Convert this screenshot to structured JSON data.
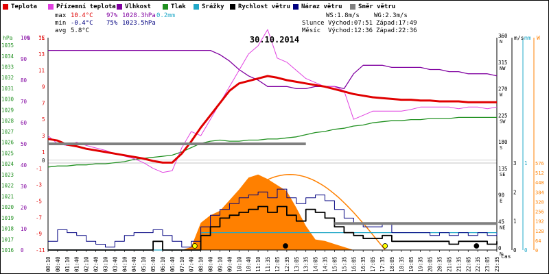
{
  "legend": [
    {
      "label": "Teplota",
      "color": "#e00000"
    },
    {
      "label": "Přízemní teplota",
      "color": "#e040e0"
    },
    {
      "label": "Vlhkost",
      "color": "#8000a0"
    },
    {
      "label": "Tlak",
      "color": "#209020"
    },
    {
      "label": "Srážky",
      "color": "#20a8c8"
    },
    {
      "label": "Rychlost větru",
      "color": "#000000"
    },
    {
      "label": "Náraz větru",
      "color": "#000080"
    },
    {
      "label": "Směr větru",
      "color": "#808080"
    }
  ],
  "stats": {
    "max_label": "max",
    "max_temp": "10.4°C",
    "max_hum": "97%",
    "max_press": "1028.3hPa",
    "max_rain": "0.2mm",
    "min_label": "min",
    "min_temp": "-0.4°C",
    "min_hum": "75%",
    "min_press": "1023.5hPa",
    "avg_label": "avg",
    "avg_temp": "5.8°C",
    "ws": "WS:1.8m/s",
    "wg": "WG:2.3m/s",
    "sun_label": "Slunce",
    "sun_rise": "Východ:07:51",
    "sun_set": "Západ:17:49",
    "moon_label": "Měsíc",
    "moon_rise": "Východ:12:36",
    "moon_set": "Západ:22:36"
  },
  "chart_data": {
    "type": "line",
    "title": "30.10.2014",
    "xlabel": "čas",
    "x": [
      "00:10",
      "00:40",
      "01:10",
      "01:40",
      "02:10",
      "02:40",
      "03:10",
      "03:40",
      "04:10",
      "04:40",
      "05:10",
      "05:40",
      "06:10",
      "06:40",
      "07:10",
      "07:40",
      "08:10",
      "08:40",
      "09:10",
      "09:40",
      "10:10",
      "10:40",
      "11:10",
      "11:35",
      "12:05",
      "12:35",
      "13:05",
      "13:35",
      "14:05",
      "14:35",
      "15:05",
      "15:35",
      "16:05",
      "16:35",
      "17:05",
      "17:35",
      "18:05",
      "18:35",
      "19:05",
      "19:35",
      "20:05",
      "20:35",
      "21:05",
      "21:35",
      "22:05",
      "22:35",
      "23:05",
      "23:35"
    ],
    "axes": {
      "pressure": {
        "label": "hPa",
        "ticks": [
          1016,
          1017,
          1018,
          1019,
          1020,
          1021,
          1022,
          1023,
          1024,
          1025,
          1026,
          1027,
          1028,
          1029,
          1030,
          1031,
          1032,
          1033,
          1034,
          1035
        ]
      },
      "humidity": {
        "label": "%",
        "ticks": [
          0,
          10,
          20,
          30,
          40,
          50,
          60,
          70,
          80,
          90,
          100
        ]
      },
      "temperature": {
        "label": "°C",
        "ticks": [
          -11,
          -9,
          -7,
          -5,
          -3,
          -1,
          1,
          3,
          5,
          7,
          9,
          11,
          13,
          15
        ],
        "extra_tick": 0
      },
      "wind_dir": {
        "label": "°",
        "ticks": [
          0,
          45,
          90,
          135,
          180,
          225,
          270,
          315,
          360
        ],
        "letters": [
          "N",
          "NE",
          "E",
          "SE",
          "S",
          "SW",
          "W",
          "NW",
          "N"
        ]
      },
      "wind_speed": {
        "label": "m/s",
        "ticks": [
          0,
          1,
          2,
          3
        ]
      },
      "rain": {
        "label": "mm",
        "ticks": [
          0,
          1
        ]
      },
      "radiation": {
        "label": "W",
        "ticks": [
          0,
          64,
          128,
          192,
          256,
          320,
          384,
          448,
          512,
          576
        ]
      }
    },
    "series": [
      {
        "name": "Teplota",
        "axis": "temperature",
        "color": "#e00000",
        "values": [
          2.6,
          2.4,
          1.9,
          1.7,
          1.4,
          1.2,
          1.0,
          0.8,
          0.6,
          0.4,
          0.2,
          -0.1,
          -0.3,
          -0.3,
          0.8,
          2.3,
          4.0,
          5.5,
          7.0,
          8.5,
          9.4,
          9.7,
          10.0,
          10.3,
          10.1,
          9.8,
          9.6,
          9.4,
          9.2,
          9.0,
          8.7,
          8.4,
          8.1,
          7.9,
          7.7,
          7.6,
          7.5,
          7.4,
          7.4,
          7.3,
          7.3,
          7.2,
          7.2,
          7.2,
          7.1,
          7.1,
          7.1,
          7.1
        ]
      },
      {
        "name": "Přízemní teplota",
        "axis": "temperature",
        "color": "#e040e0",
        "values": [
          3.0,
          2.0,
          1.8,
          2.2,
          1.8,
          1.5,
          1.2,
          0.8,
          0.5,
          0.2,
          -0.3,
          -1.0,
          -1.5,
          -1.3,
          1.5,
          3.5,
          3.0,
          5.0,
          7.0,
          9.0,
          11.0,
          13.0,
          14.0,
          16.0,
          12.5,
          12.0,
          11.0,
          10.0,
          9.5,
          9.0,
          9.0,
          8.5,
          5.0,
          5.5,
          6.0,
          6.0,
          6.0,
          6.0,
          6.2,
          6.5,
          6.5,
          6.5,
          6.5,
          6.3,
          6.5,
          6.5,
          6.3,
          6.5
        ]
      },
      {
        "name": "Vlhkost",
        "axis": "humidity",
        "color": "#8000a0",
        "values": [
          94,
          94,
          94,
          94,
          94,
          94,
          94,
          94,
          94,
          94,
          94,
          94,
          94,
          94,
          94,
          94,
          94,
          94,
          92,
          89,
          85,
          82,
          80,
          77,
          77,
          77,
          76,
          76,
          77,
          77,
          77,
          76,
          83,
          87,
          87,
          87,
          86,
          86,
          86,
          86,
          85,
          85,
          84,
          84,
          83,
          83,
          83,
          82
        ]
      },
      {
        "name": "Tlak",
        "axis": "pressure",
        "color": "#209020",
        "values": [
          1023.7,
          1023.8,
          1023.8,
          1023.9,
          1023.9,
          1024.0,
          1024.0,
          1024.1,
          1024.2,
          1024.4,
          1024.5,
          1024.6,
          1024.7,
          1024.8,
          1025.1,
          1025.5,
          1025.9,
          1026.1,
          1026.2,
          1026.1,
          1026.1,
          1026.2,
          1026.2,
          1026.3,
          1026.3,
          1026.4,
          1026.5,
          1026.7,
          1026.9,
          1027.0,
          1027.2,
          1027.3,
          1027.5,
          1027.6,
          1027.8,
          1027.9,
          1028.0,
          1028.0,
          1028.1,
          1028.1,
          1028.2,
          1028.2,
          1028.2,
          1028.3,
          1028.3,
          1028.3,
          1028.3,
          1028.3
        ]
      },
      {
        "name": "Srážky",
        "axis": "rain",
        "color": "#20a8c8",
        "values": [
          0,
          0,
          0,
          0,
          0,
          0,
          0,
          0,
          0,
          0,
          0,
          0,
          0,
          0,
          0,
          0,
          0.2,
          0.2,
          0.2,
          0.2,
          0.2,
          0.2,
          0.2,
          0.2,
          0.2,
          0.2,
          0.2,
          0.2,
          0.2,
          0.2,
          0.2,
          0.2,
          0.2,
          0.2,
          0.2,
          0.2,
          0.2,
          0.2,
          0.2,
          0.2,
          0.2,
          0.2,
          0.2,
          0.2,
          0.2,
          0.2,
          0.2,
          0.2
        ]
      },
      {
        "name": "Rychlost větru",
        "axis": "wind_speed",
        "color": "#000000",
        "values": [
          0,
          0,
          0,
          0,
          0,
          0,
          0,
          0,
          0,
          0,
          0,
          0.3,
          0,
          0,
          0,
          0,
          0.5,
          0.8,
          1.1,
          1.2,
          1.3,
          1.4,
          1.5,
          1.3,
          1.5,
          1.2,
          1.0,
          1.4,
          1.3,
          1.1,
          0.8,
          0.6,
          0.5,
          0.4,
          0.4,
          0.5,
          0.3,
          0.3,
          0.3,
          0.3,
          0.3,
          0.3,
          0.2,
          0.3,
          0.3,
          0.3,
          0.2,
          0.3
        ]
      },
      {
        "name": "Náraz větru",
        "axis": "wind_speed",
        "color": "#000080",
        "values": [
          0.3,
          0.7,
          0.6,
          0.5,
          0.3,
          0.2,
          0.1,
          0.3,
          0.5,
          0.6,
          0.6,
          0.7,
          0.5,
          0.3,
          0.1,
          0.3,
          0.8,
          1.2,
          1.4,
          1.6,
          1.8,
          1.9,
          2.0,
          1.8,
          2.1,
          1.8,
          1.6,
          1.8,
          1.9,
          1.7,
          1.4,
          1.1,
          0.9,
          0.8,
          0.8,
          0.9,
          0.6,
          0.6,
          0.6,
          0.6,
          0.5,
          0.6,
          0.5,
          0.6,
          0.5,
          0.6,
          0.5,
          0.6
        ]
      },
      {
        "name": "Směr větru",
        "axis": "wind_dir",
        "color": "#808080",
        "values": [
          180,
          180,
          180,
          180,
          180,
          180,
          180,
          180,
          180,
          180,
          180,
          180,
          180,
          180,
          180,
          180,
          180,
          180,
          180,
          180,
          180,
          180,
          180,
          180,
          180,
          180,
          180,
          180,
          null,
          null,
          45,
          45,
          45,
          45,
          45,
          45,
          45,
          45,
          45,
          45,
          45,
          45,
          45,
          45,
          45,
          45,
          45,
          45
        ]
      }
    ],
    "solar_radiation": {
      "axis": "radiation",
      "color": "#ff8000",
      "values": [
        0,
        0,
        0,
        0,
        0,
        0,
        0,
        0,
        0,
        0,
        0,
        0,
        0,
        0,
        0,
        20,
        180,
        230,
        260,
        330,
        400,
        480,
        500,
        470,
        430,
        390,
        280,
        160,
        70,
        60,
        40,
        20,
        0,
        0,
        0,
        0,
        0,
        0,
        0,
        0,
        0,
        0,
        0,
        0,
        0,
        0,
        0,
        0
      ]
    },
    "theoretical_radiation": {
      "axis": "radiation",
      "color": "#ff8000",
      "peak": 500,
      "from": "07:51",
      "to": "17:49"
    }
  }
}
